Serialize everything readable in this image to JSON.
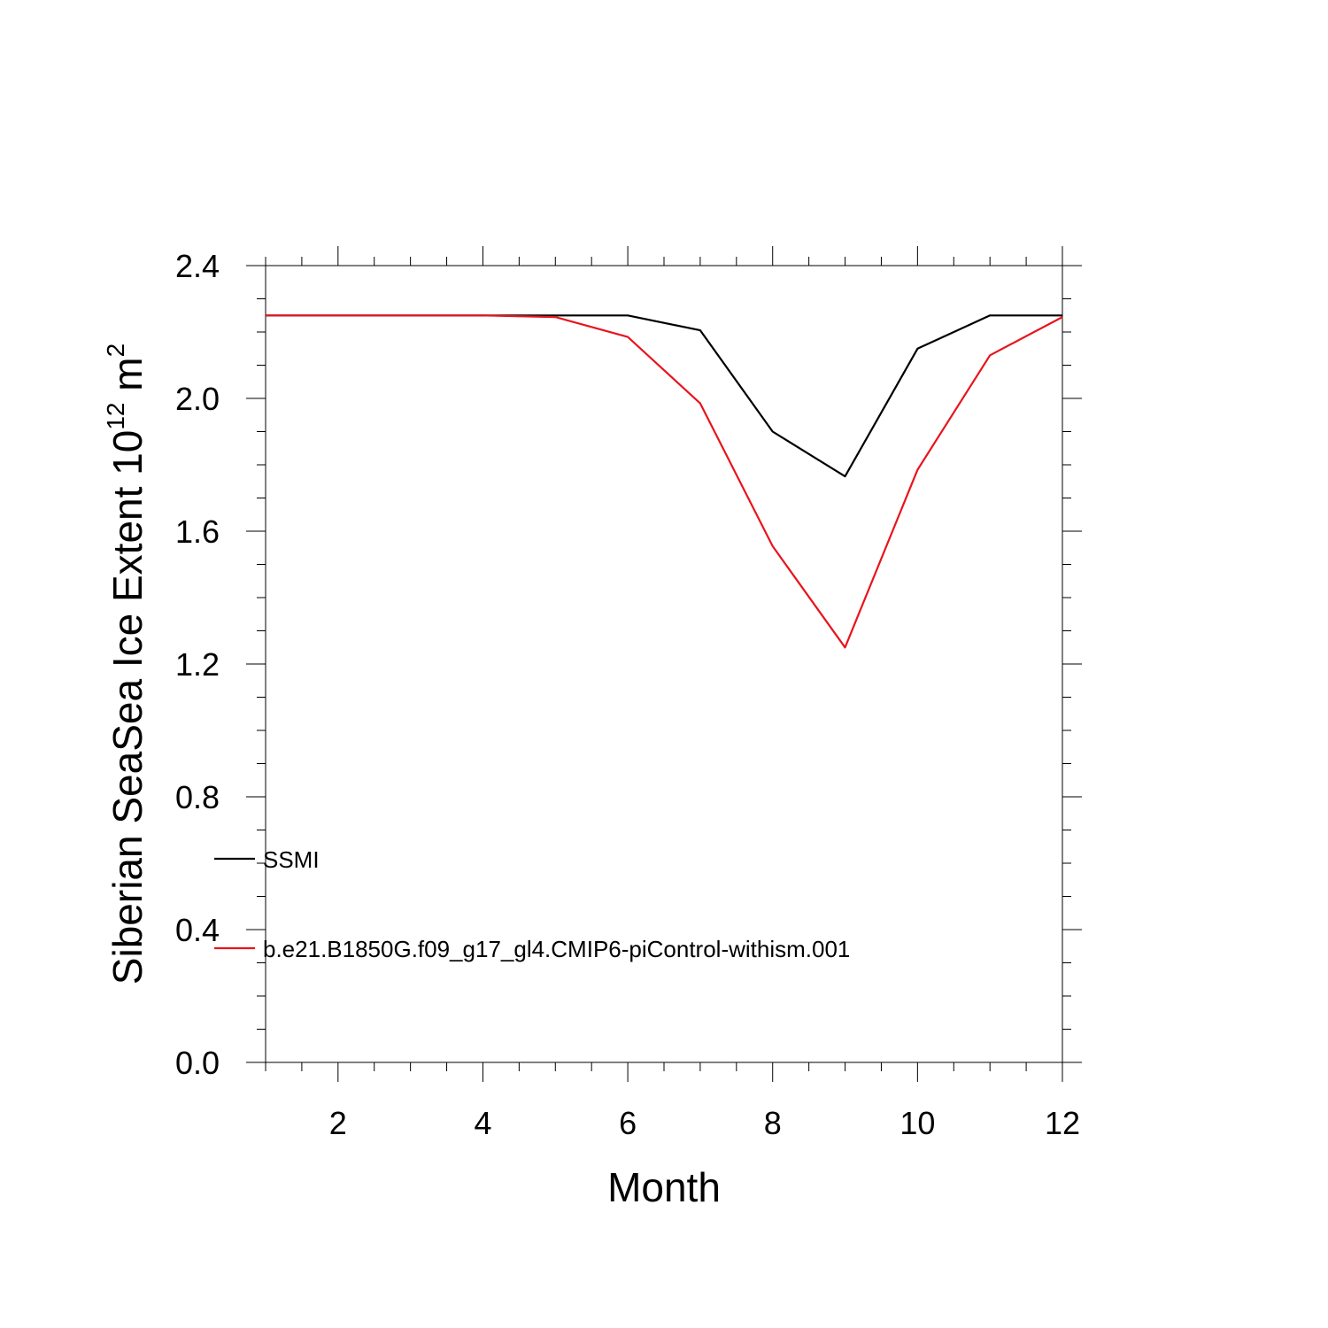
{
  "chart_data": {
    "type": "line",
    "xlabel": "Month",
    "ylabel_main": "Siberian SeaSea Ice Extent 10",
    "ylabel_exp": "12",
    "ylabel_unit": " m",
    "ylabel_unit_exp": "2",
    "xlim": [
      1,
      12
    ],
    "ylim": [
      0,
      2.4
    ],
    "xticks": [
      2,
      4,
      6,
      8,
      10,
      12
    ],
    "xtick_labels": [
      "2",
      "4",
      "6",
      "8",
      "10",
      "12"
    ],
    "yticks": [
      0,
      0.4,
      0.8,
      1.2,
      1.6,
      2.0,
      2.4
    ],
    "ytick_labels": [
      "0.0",
      "0.4",
      "0.8",
      "1.2",
      "1.6",
      "2.0",
      "2.4"
    ],
    "x": [
      1,
      2,
      3,
      4,
      5,
      6,
      7,
      8,
      9,
      10,
      11,
      12
    ],
    "series": [
      {
        "name": "SSMI",
        "color": "#000000",
        "values": [
          2.25,
          2.25,
          2.25,
          2.25,
          2.25,
          2.25,
          2.205,
          1.9,
          1.765,
          2.15,
          2.25,
          2.25
        ]
      },
      {
        "name": "b.e21.B1850G.f09_g17_gl4.CMIP6-piControl-withism.001",
        "color": "#e8141c",
        "values": [
          2.25,
          2.25,
          2.25,
          2.25,
          2.245,
          2.185,
          1.985,
          1.555,
          1.25,
          1.785,
          2.13,
          2.245
        ]
      }
    ],
    "legend": "lower-left"
  }
}
